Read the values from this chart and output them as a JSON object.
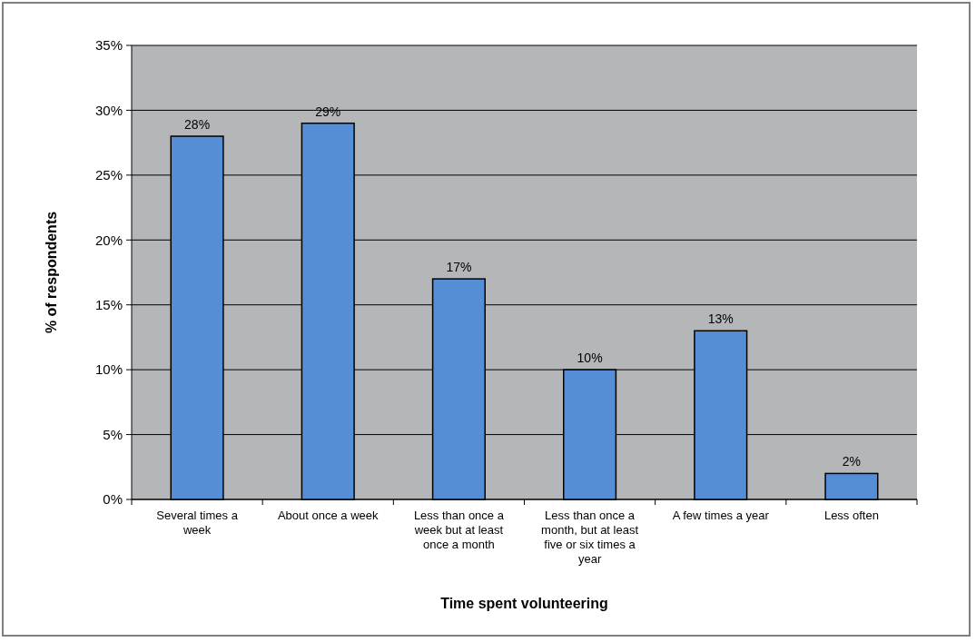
{
  "chart_data": {
    "type": "bar",
    "xlabel": "Time spent volunteering",
    "ylabel": "% of respondents",
    "categories": [
      "Several times a week",
      "About once a week",
      "Less than once a week but at least once a month",
      "Less than once a month, but at least five or six times a year",
      "A few times a year",
      "Less often"
    ],
    "values": [
      28,
      29,
      17,
      10,
      13,
      2
    ],
    "value_labels": [
      "28%",
      "29%",
      "17%",
      "10%",
      "13%",
      "2%"
    ],
    "color": "#558ed5",
    "ylim": [
      0,
      35
    ],
    "yticks": [
      {
        "value": 0,
        "label": "0%"
      },
      {
        "value": 5,
        "label": "5%"
      },
      {
        "value": 10,
        "label": "10%"
      },
      {
        "value": 15,
        "label": "15%"
      },
      {
        "value": 20,
        "label": "20%"
      },
      {
        "value": 25,
        "label": "25%"
      },
      {
        "value": 30,
        "label": "30%"
      },
      {
        "value": 35,
        "label": "35%"
      }
    ],
    "grid": "y"
  }
}
